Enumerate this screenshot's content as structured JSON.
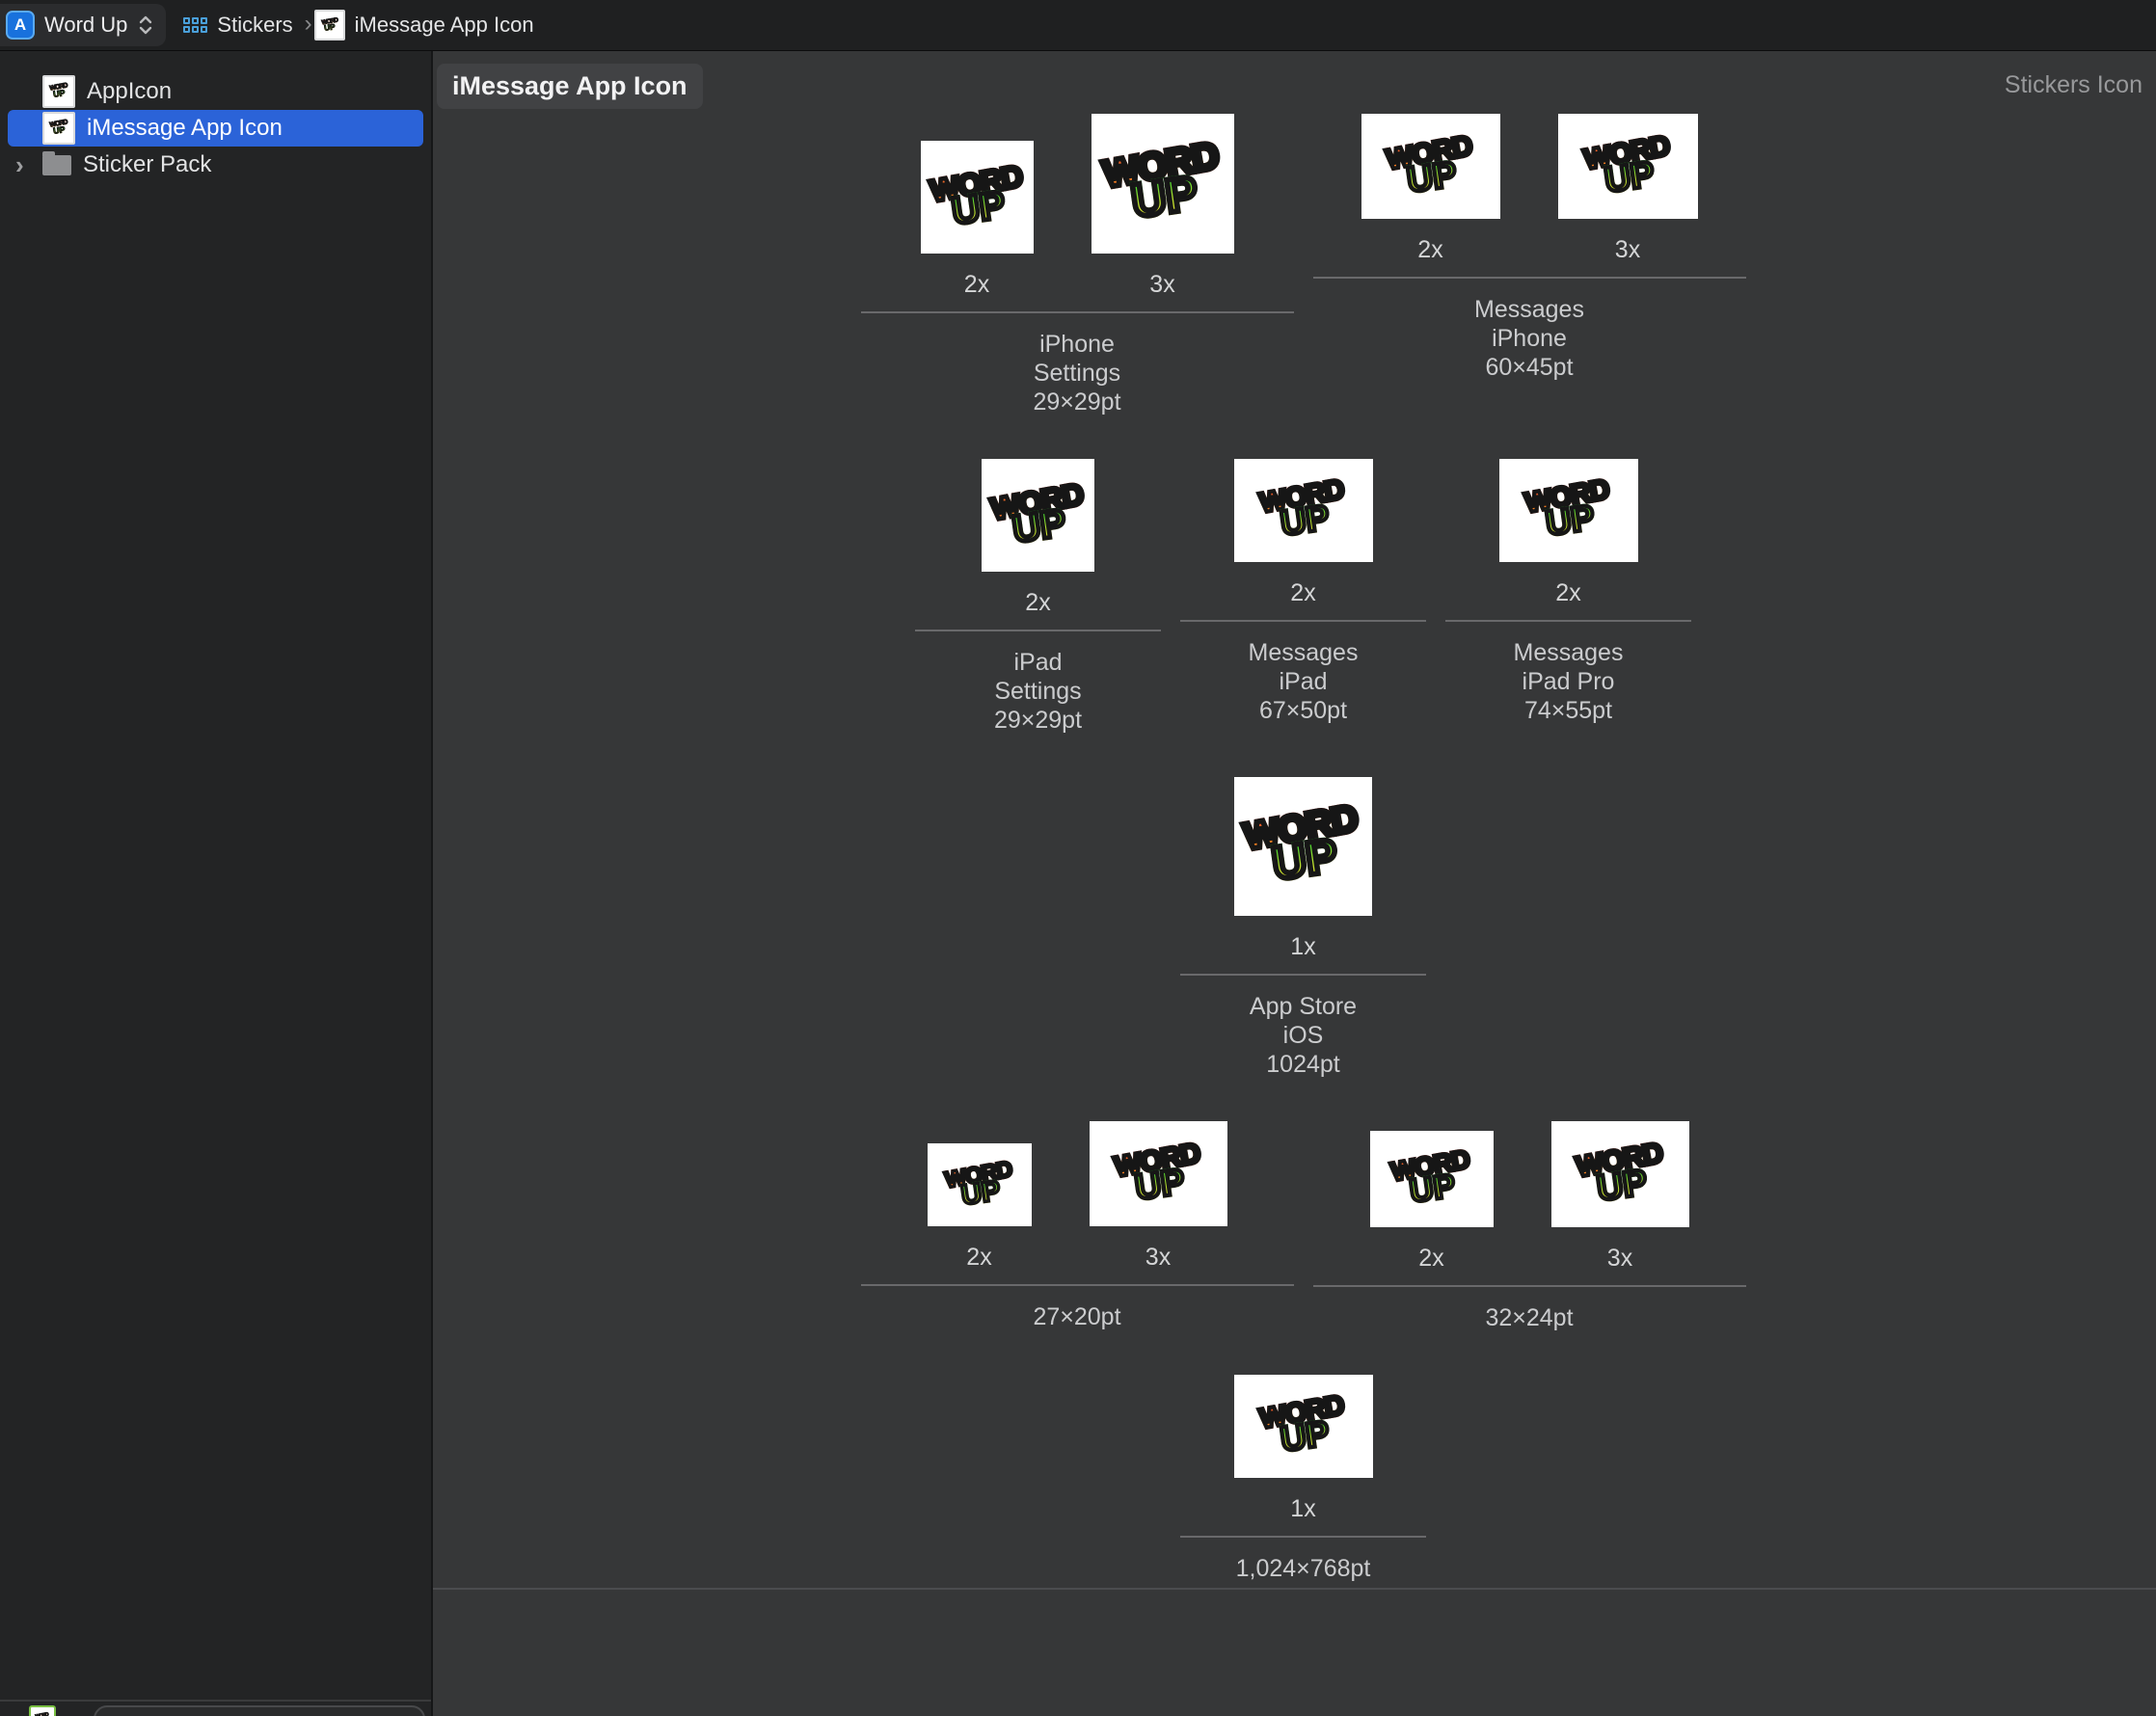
{
  "toolbar": {
    "project": "Word Up",
    "collection": "Stickers",
    "item": "iMessage App Icon",
    "separator": "›"
  },
  "sidebar": {
    "disclosure": "›",
    "items": [
      {
        "label": "AppIcon",
        "selected": false
      },
      {
        "label": "iMessage App Icon",
        "selected": true
      },
      {
        "label": "Sticker Pack",
        "selected": false
      }
    ]
  },
  "content": {
    "title": "iMessage App Icon",
    "corner_label": "Stickers Icon",
    "logo": {
      "line1": "WORD",
      "line2": "UP"
    },
    "rows": [
      {
        "groups": [
          {
            "slots": [
              {
                "scale": "2x",
                "w": 117,
                "h": 117
              },
              {
                "scale": "3x",
                "w": 148,
                "h": 145
              }
            ],
            "lines": [
              "iPhone",
              "Settings",
              "29×29pt"
            ],
            "divider_w": 449
          },
          {
            "slots": [
              {
                "scale": "2x",
                "w": 144,
                "h": 109
              },
              {
                "scale": "3x",
                "w": 145,
                "h": 109
              }
            ],
            "lines": [
              "Messages",
              "iPhone",
              "60×45pt"
            ],
            "divider_w": 449
          }
        ]
      },
      {
        "groups": [
          {
            "slots": [
              {
                "scale": "2x",
                "w": 117,
                "h": 117
              }
            ],
            "lines": [
              "iPad",
              "Settings",
              "29×29pt"
            ],
            "divider_w": 255
          },
          {
            "slots": [
              {
                "scale": "2x",
                "w": 144,
                "h": 107
              }
            ],
            "lines": [
              "Messages",
              "iPad",
              "67×50pt"
            ],
            "divider_w": 255
          },
          {
            "slots": [
              {
                "scale": "2x",
                "w": 144,
                "h": 107
              }
            ],
            "lines": [
              "Messages",
              "iPad Pro",
              "74×55pt"
            ],
            "divider_w": 255
          }
        ]
      },
      {
        "groups": [
          {
            "slots": [
              {
                "scale": "1x",
                "w": 143,
                "h": 144
              }
            ],
            "lines": [
              "App Store",
              "iOS",
              "1024pt"
            ],
            "divider_w": 255
          }
        ]
      },
      {
        "groups": [
          {
            "slots": [
              {
                "scale": "2x",
                "w": 108,
                "h": 86
              },
              {
                "scale": "3x",
                "w": 143,
                "h": 109
              }
            ],
            "lines": [
              "27×20pt"
            ],
            "divider_w": 449
          },
          {
            "slots": [
              {
                "scale": "2x",
                "w": 128,
                "h": 100
              },
              {
                "scale": "3x",
                "w": 143,
                "h": 110
              }
            ],
            "lines": [
              "32×24pt"
            ],
            "divider_w": 449
          }
        ]
      },
      {
        "groups": [
          {
            "slots": [
              {
                "scale": "1x",
                "w": 144,
                "h": 107
              }
            ],
            "lines": [
              "1,024×768pt"
            ],
            "divider_w": 255
          }
        ]
      }
    ]
  },
  "colors": {
    "accent_blue": "#2b63d8",
    "toolbar_bg": "#1f2021",
    "sidebar_bg": "#232425",
    "content_bg": "#363738",
    "logo_red": "#e93c2e",
    "logo_orange": "#f6a01e",
    "logo_green": "#2fd12f",
    "logo_yellow": "#f2e32a"
  }
}
